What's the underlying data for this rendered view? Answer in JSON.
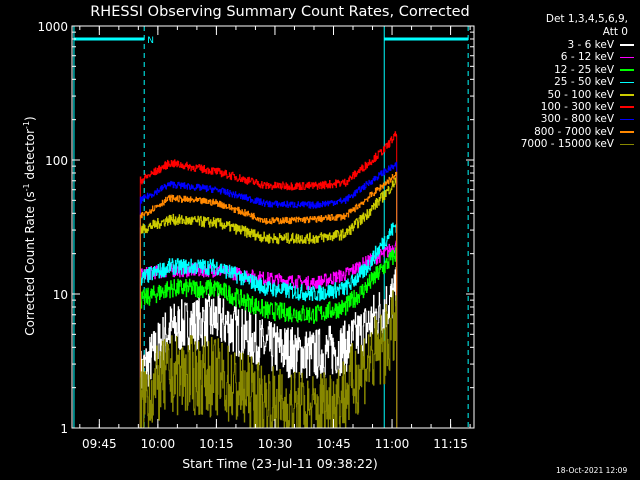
{
  "chart_data": {
    "type": "line",
    "title": "RHESSI Observing Summary Count Rates, Corrected",
    "xlabel": "Start Time (23-Jul-11 09:38:22)",
    "ylabel_parts": [
      "Corrected Count Rate (s",
      "-1",
      " detector",
      "-1",
      ")"
    ],
    "y_scale": "log",
    "ylim": [
      1,
      1000
    ],
    "y_ticks": [
      1,
      10,
      100,
      1000
    ],
    "y_tick_labels": [
      "1",
      "10",
      "100",
      "1000"
    ],
    "xlim_minutes": [
      0,
      103
    ],
    "x_ticks": [
      {
        "minutes": 7,
        "label": "09:45"
      },
      {
        "minutes": 22,
        "label": "10:00"
      },
      {
        "minutes": 37,
        "label": "10:15"
      },
      {
        "minutes": 52,
        "label": "10:30"
      },
      {
        "minutes": 67,
        "label": "10:45"
      },
      {
        "minutes": 82,
        "label": "11:00"
      },
      {
        "minutes": 97,
        "label": "11:15"
      }
    ],
    "night_bars": [
      {
        "start": 0.5,
        "end": 18.5,
        "value": 800
      },
      {
        "start": 80.0,
        "end": 101.5,
        "value": 800
      }
    ],
    "night_marker_label": "N",
    "solid_markers": [
      0.5,
      80.0
    ],
    "dashed_markers": [
      18.5,
      101.5
    ],
    "time_points": [
      17.5,
      25,
      37,
      50,
      62,
      70,
      75,
      80,
      83
    ],
    "data_start_minute": 17.5,
    "data_end_minute": 83.2,
    "series": [
      {
        "name": "3 - 6 keV",
        "color": "#ffffff",
        "values": [
          2.5,
          5.5,
          6.5,
          4,
          3.5,
          4,
          5.5,
          8,
          10
        ],
        "noise": 0.2
      },
      {
        "name": "6 - 12 keV",
        "color": "#ff00ff",
        "values": [
          14,
          15,
          15,
          13,
          12,
          14,
          17,
          20,
          23
        ],
        "noise": 0.05
      },
      {
        "name": "12 - 25 keV",
        "color": "#00ff00",
        "values": [
          9,
          11,
          11,
          7.5,
          7,
          8,
          11,
          16,
          20
        ],
        "noise": 0.07
      },
      {
        "name": "25 - 50 keV",
        "color": "#00ffff",
        "values": [
          13,
          16,
          16,
          11,
          10,
          11,
          15,
          25,
          33
        ],
        "noise": 0.06
      },
      {
        "name": "50 - 100 keV",
        "color": "#cccc00",
        "values": [
          30,
          36,
          34,
          26,
          26,
          28,
          38,
          55,
          70
        ],
        "noise": 0.04
      },
      {
        "name": "100 - 300 keV",
        "color": "#ff0000",
        "values": [
          70,
          95,
          82,
          64,
          64,
          68,
          90,
          120,
          155
        ],
        "noise": 0.03
      },
      {
        "name": "300 - 800 keV",
        "color": "#0000ff",
        "values": [
          50,
          66,
          60,
          47,
          46,
          50,
          64,
          82,
          91
        ],
        "noise": 0.025
      },
      {
        "name": "800 - 7000 keV",
        "color": "#ff8800",
        "values": [
          38,
          52,
          48,
          35,
          36,
          38,
          50,
          66,
          78
        ],
        "noise": 0.025
      },
      {
        "name": "7000 - 15000 keV",
        "color": "#888800",
        "values": [
          1.6,
          2.5,
          2.4,
          1.5,
          1.3,
          1.8,
          3,
          4,
          6
        ],
        "noise": 0.3
      }
    ]
  },
  "legend_header": [
    "Det 1,3,4,5,6,9,",
    "Att 0"
  ],
  "timestamp": "18-Oct-2021 12:09"
}
